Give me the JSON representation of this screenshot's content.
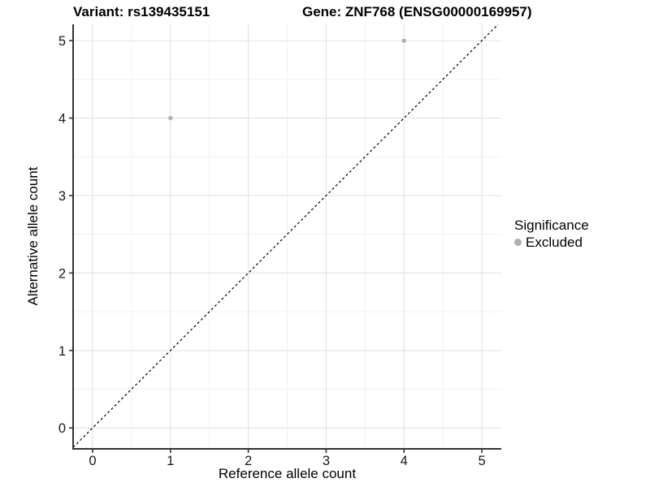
{
  "figure": {
    "title_variant": "Variant: rs139435151",
    "title_gene": "Gene: ZNF768 (ENSG00000169957)"
  },
  "axes": {
    "x_title": "Reference allele count",
    "y_title": "Alternative allele count"
  },
  "legend": {
    "title": "Significance",
    "items": [
      {
        "label": "Excluded",
        "color": "#b0b0b0"
      }
    ]
  },
  "colors": {
    "background": "#ffffff",
    "grid_major": "#e5e5e5",
    "grid_minor": "#f2f2f2",
    "axis_line": "#333333",
    "tick_mark": "#333333",
    "tick_label": "#1a1a1a",
    "reference_line": "#000000",
    "point": "#b0b0b0"
  },
  "chart_data": {
    "type": "scatter",
    "title": "Variant: rs139435151 / Gene: ZNF768 (ENSG00000169957)",
    "xlabel": "Reference allele count",
    "ylabel": "Alternative allele count",
    "xlim": [
      -0.25,
      5.25
    ],
    "ylim": [
      -0.27,
      5.21
    ],
    "x_ticks": [
      0,
      1,
      2,
      3,
      4,
      5
    ],
    "y_ticks": [
      0,
      1,
      2,
      3,
      4,
      5
    ],
    "grid": "major at integers, minor at 0.5 steps",
    "legend_position": "right",
    "series": [
      {
        "name": "Excluded",
        "color": "#b0b0b0",
        "marker": "circle",
        "points": [
          {
            "x": 1,
            "y": 4
          },
          {
            "x": 4,
            "y": 5
          }
        ]
      }
    ],
    "reference_line": {
      "kind": "identity y=x",
      "style": "dashed",
      "color": "#000000"
    }
  }
}
